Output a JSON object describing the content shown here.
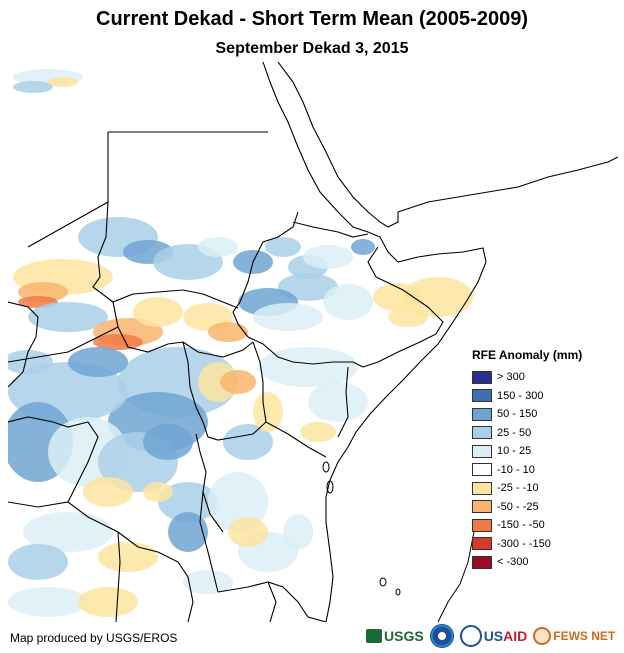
{
  "title": "Current Dekad - Short Term Mean (2005-2009)",
  "subtitle": "September Dekad 3, 2015",
  "legend": {
    "title": "RFE Anomaly (mm)",
    "items": [
      {
        "label": "> 300",
        "color": "#2b2f8f"
      },
      {
        "label": "150 - 300",
        "color": "#3f6fb3"
      },
      {
        "label": "50 - 150",
        "color": "#6fa4d2"
      },
      {
        "label": "25 - 50",
        "color": "#a9d0e7"
      },
      {
        "label": "10 - 25",
        "color": "#dbeef6"
      },
      {
        "label": "-10 - 10",
        "color": "#ffffff"
      },
      {
        "label": "-25 - -10",
        "color": "#fde4a0"
      },
      {
        "label": "-50 - -25",
        "color": "#f9b56d"
      },
      {
        "label": "-150 - -50",
        "color": "#f07a45"
      },
      {
        "label": "-300 - -150",
        "color": "#d9392b"
      },
      {
        "label": "< -300",
        "color": "#9c0a2a"
      }
    ]
  },
  "credit": "Map produced by USGS/EROS",
  "logos": {
    "usgs": "USGS",
    "usaid_us": "US",
    "usaid_aid": "AID",
    "fews": "FEWS NET"
  },
  "colors": {
    "border": "#000000",
    "ocean": "#ffffff"
  }
}
